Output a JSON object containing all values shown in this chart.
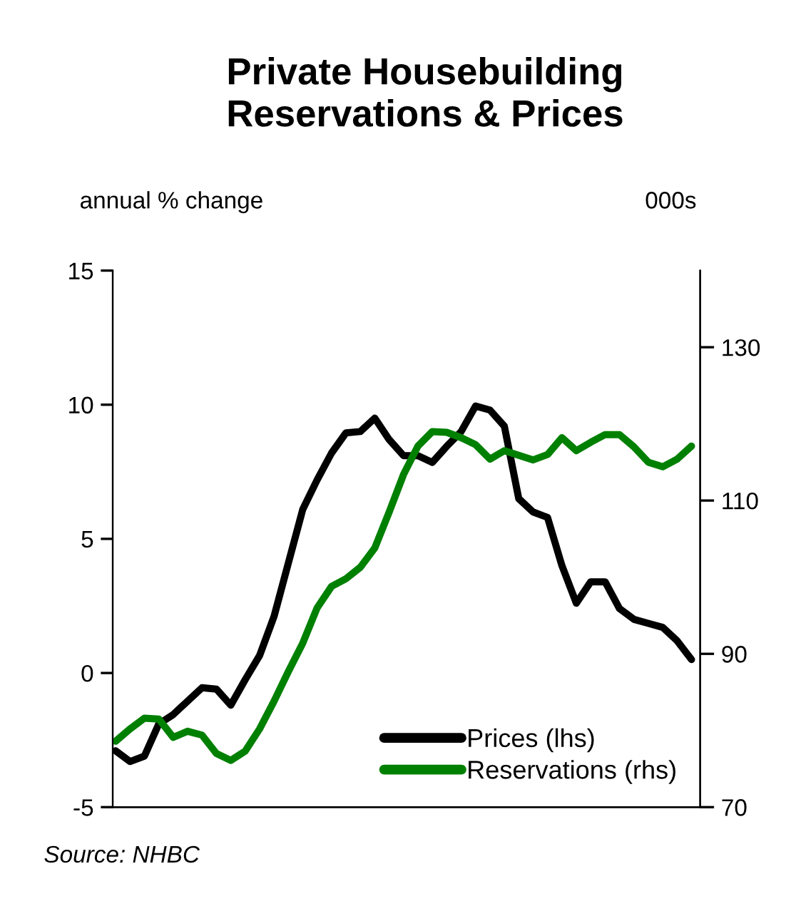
{
  "chart_data": {
    "type": "line",
    "title": "Private Housebuilding\nReservations & Prices",
    "ylabel": "annual % change",
    "y2label": "000s",
    "categories": [
      null,
      null,
      null,
      null,
      null,
      null,
      null,
      null,
      null,
      null,
      null,
      null,
      null,
      null,
      null,
      null,
      null,
      null,
      null,
      null,
      null,
      null,
      null,
      null,
      null,
      null,
      null,
      null,
      null,
      null,
      null,
      null,
      null,
      null,
      null,
      null,
      null,
      null,
      null,
      null,
      null
    ],
    "ylim": [
      -5,
      15
    ],
    "yticks": [
      -5,
      0,
      5,
      10,
      15
    ],
    "y2lim": [
      70,
      140
    ],
    "y2ticks": [
      70,
      90,
      110,
      130
    ],
    "tick_labels": "y",
    "grid": false,
    "legend": "bottom right",
    "line_style": "solid",
    "marker": "none",
    "series": [
      {
        "name": "Prices (lhs)",
        "color": "#000000",
        "values": [
          -2.9,
          -3.3,
          -3.1,
          -1.9,
          -1.55,
          -1.05,
          -0.55,
          -0.6,
          -1.2,
          -0.25,
          0.65,
          2.1,
          4.1,
          6.1,
          7.2,
          8.2,
          8.95,
          9.0,
          9.5,
          8.7,
          8.1,
          8.1,
          7.85,
          8.45,
          9.0,
          9.95,
          9.8,
          9.2,
          6.5,
          6.0,
          5.8,
          4.0,
          2.6,
          3.4,
          3.4,
          2.4,
          2.0,
          1.85,
          1.7,
          1.2,
          0.5
        ]
      },
      {
        "name": "Reservations (rhs)",
        "color": "#008000",
        "axis": "y2",
        "values": [
          78.6,
          80.2,
          81.6,
          81.5,
          79.1,
          79.9,
          79.4,
          77.0,
          76.1,
          77.3,
          80.2,
          83.8,
          87.7,
          91.4,
          96.0,
          98.8,
          99.8,
          101.3,
          103.8,
          108.5,
          113.4,
          117.1,
          119.0,
          118.9,
          118.2,
          117.3,
          115.4,
          116.5,
          115.9,
          115.3,
          116.0,
          118.2,
          116.5,
          117.6,
          118.6,
          118.6,
          117.0,
          115.0,
          114.4,
          115.4,
          117.1
        ]
      }
    ],
    "annotations": [
      "Source: NHBC"
    ]
  }
}
